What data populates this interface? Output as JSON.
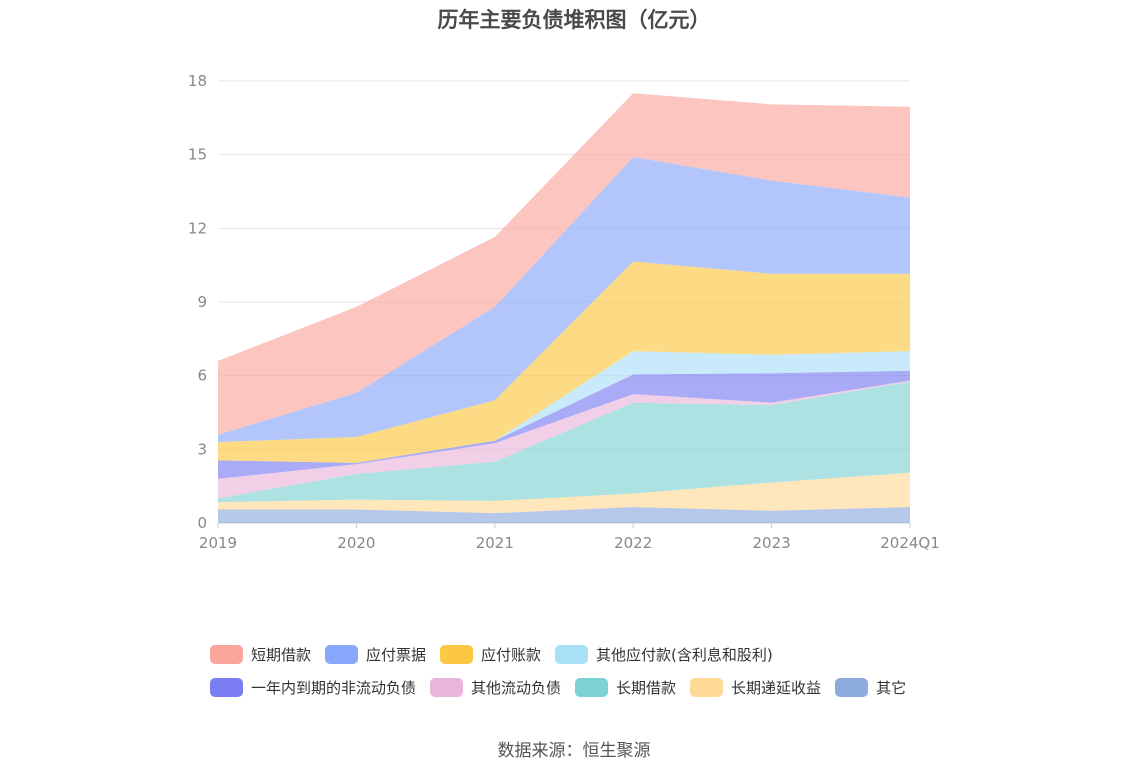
{
  "chart_data": {
    "type": "area",
    "stacked": true,
    "title": "历年主要负债堆积图（亿元）",
    "categories": [
      "2019",
      "2020",
      "2021",
      "2022",
      "2023",
      "2024Q1"
    ],
    "ylim": [
      0,
      18
    ],
    "yticks": [
      "0",
      "3",
      "6",
      "9",
      "12",
      "15",
      "18"
    ],
    "grid": true,
    "legend_position": "bottom",
    "series": [
      {
        "name": "其它",
        "color": "#8eabde",
        "values": [
          0.55,
          0.55,
          0.4,
          0.65,
          0.5,
          0.65
        ]
      },
      {
        "name": "长期递延收益",
        "color": "#ffd996",
        "values": [
          0.3,
          0.4,
          0.5,
          0.55,
          1.15,
          1.4
        ]
      },
      {
        "name": "长期借款",
        "color": "#7fd2d2",
        "values": [
          0.15,
          1.05,
          1.6,
          3.7,
          3.15,
          3.7
        ]
      },
      {
        "name": "其他流动负债",
        "color": "#e8b6da",
        "values": [
          0.8,
          0.4,
          0.75,
          0.35,
          0.1,
          0.05
        ]
      },
      {
        "name": "一年内到期的非流动负债",
        "color": "#7b7ef3",
        "values": [
          0.75,
          0.05,
          0.1,
          0.8,
          1.2,
          0.4
        ]
      },
      {
        "name": "其他应付款(含利息和股利)",
        "color": "#aadff8",
        "values": [
          0.0,
          0.0,
          0.0,
          0.95,
          0.75,
          0.8
        ]
      },
      {
        "name": "应付账款",
        "color": "#fcc843",
        "values": [
          0.75,
          1.05,
          1.65,
          3.65,
          3.3,
          3.15
        ]
      },
      {
        "name": "应付票据",
        "color": "#8aa8fb",
        "values": [
          0.3,
          1.8,
          3.8,
          4.25,
          3.8,
          3.1
        ]
      },
      {
        "name": "短期借款",
        "color": "#faa69c",
        "values": [
          3.0,
          3.5,
          2.85,
          2.6,
          3.1,
          3.7
        ]
      }
    ]
  },
  "legend": [
    [
      "短期借款",
      "应付票据",
      "应付账款",
      "其他应付款(含利息和股利)"
    ],
    [
      "一年内到期的非流动负债",
      "其他流动负债",
      "长期借款",
      "长期递延收益",
      "其它"
    ]
  ],
  "source": "数据来源：恒生聚源"
}
